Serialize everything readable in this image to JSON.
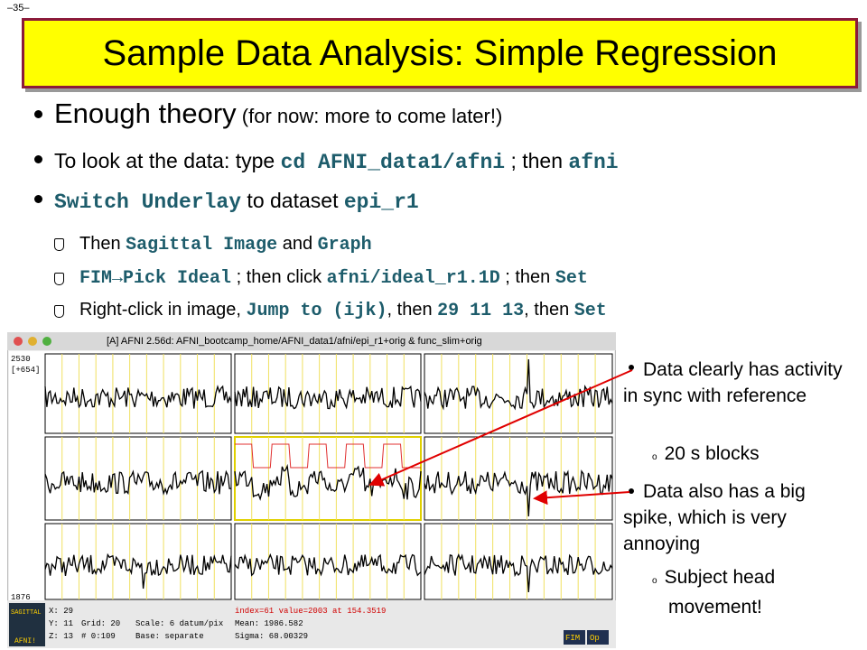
{
  "page_number": "–35–",
  "title": "Sample Data Analysis: Simple Regression",
  "bullets": [
    [
      "Enough theory",
      " (for now: more to come later!)"
    ],
    [
      "To look at the data: type ",
      "cd AFNI_data1/afni",
      " ; then ",
      "afni"
    ],
    [
      "Switch Underlay",
      " to dataset ",
      "epi_r1"
    ]
  ],
  "sub_bullets": [
    [
      "Then ",
      "Sagittal Image",
      " and ",
      "Graph"
    ],
    [
      "FIM",
      "→",
      "Pick Ideal",
      " ; then click ",
      "afni/ideal_r1.1D",
      " ; then ",
      "Set"
    ],
    [
      "Right-click in image, ",
      "Jump to (ijk)",
      ", then ",
      "29 11 13",
      ", then ",
      "Set"
    ]
  ],
  "screenshot": {
    "window_title": "[A] AFNI 2.56d: AFNI_bootcamp_home/AFNI_data1/afni/epi_r1+orig & func_slim+orig",
    "y_top": "2530",
    "y_offset": "[+654]",
    "y_bottom": "1876",
    "coords": [
      "X: 29",
      "Y: 11",
      "Z: 13"
    ],
    "grid": "Grid:   20",
    "range": "#   0:109",
    "scale": "Scale: 6 datum/pix",
    "base": "Base: separate",
    "status": "index=61 value=2003 at 154.3519",
    "mean": "Mean:   1986.582",
    "sigma": "Sigma:  68.00329",
    "buttons": [
      "FIM",
      "Op"
    ],
    "logo": [
      "SAGITTAL",
      "AFNI!"
    ]
  },
  "notes": [
    {
      "text": "Data clearly has activity in sync with reference",
      "sub": "20 s blocks"
    },
    {
      "text": "Data also has a big spike, which is very annoying",
      "sub": "Subject head movement!"
    }
  ]
}
